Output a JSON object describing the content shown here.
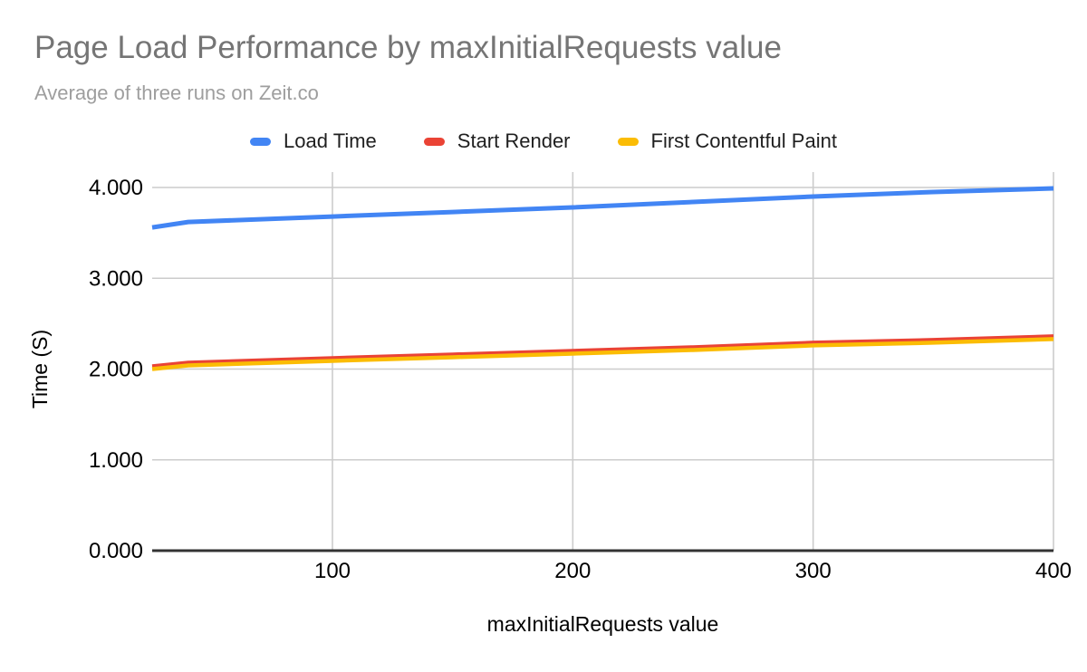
{
  "header": {
    "title": "Page Load Performance by maxInitialRequests value",
    "subtitle": "Average of three runs on Zeit.co"
  },
  "chart_data": {
    "type": "line",
    "title": "Page Load Performance by maxInitialRequests value",
    "subtitle": "Average of three runs on Zeit.co",
    "xlabel": "maxInitialRequests value",
    "ylabel": "Time (S)",
    "xlim": [
      25,
      400
    ],
    "ylim": [
      0,
      4
    ],
    "x_ticks": [
      100,
      200,
      300,
      400
    ],
    "x_tick_labels": [
      "100",
      "200",
      "300",
      "400"
    ],
    "y_ticks": [
      0,
      1,
      2,
      3,
      4
    ],
    "y_tick_labels": [
      "0.000",
      "1.000",
      "2.000",
      "3.000",
      "4.000"
    ],
    "grid": true,
    "legend_position": "top",
    "x": [
      25,
      40,
      100,
      150,
      200,
      250,
      300,
      350,
      400
    ],
    "series": [
      {
        "name": "Load Time",
        "color": "#4285F4",
        "values": [
          3.56,
          3.62,
          3.68,
          3.73,
          3.78,
          3.84,
          3.9,
          3.95,
          3.99
        ]
      },
      {
        "name": "Start Render",
        "color": "#EA4335",
        "values": [
          2.03,
          2.07,
          2.12,
          2.16,
          2.2,
          2.24,
          2.29,
          2.32,
          2.36
        ]
      },
      {
        "name": "First Contentful Paint",
        "color": "#FBBC04",
        "values": [
          2.0,
          2.04,
          2.09,
          2.13,
          2.17,
          2.21,
          2.26,
          2.29,
          2.33
        ]
      }
    ]
  },
  "colors": {
    "title_gray": "#757575",
    "subtitle_gray": "#9e9e9e",
    "gridline_gray": "#cccccc",
    "axis_line_dark": "#333333",
    "tick_label_black": "#000000",
    "legend_text": "#1f1f1f",
    "background": "#ffffff"
  }
}
